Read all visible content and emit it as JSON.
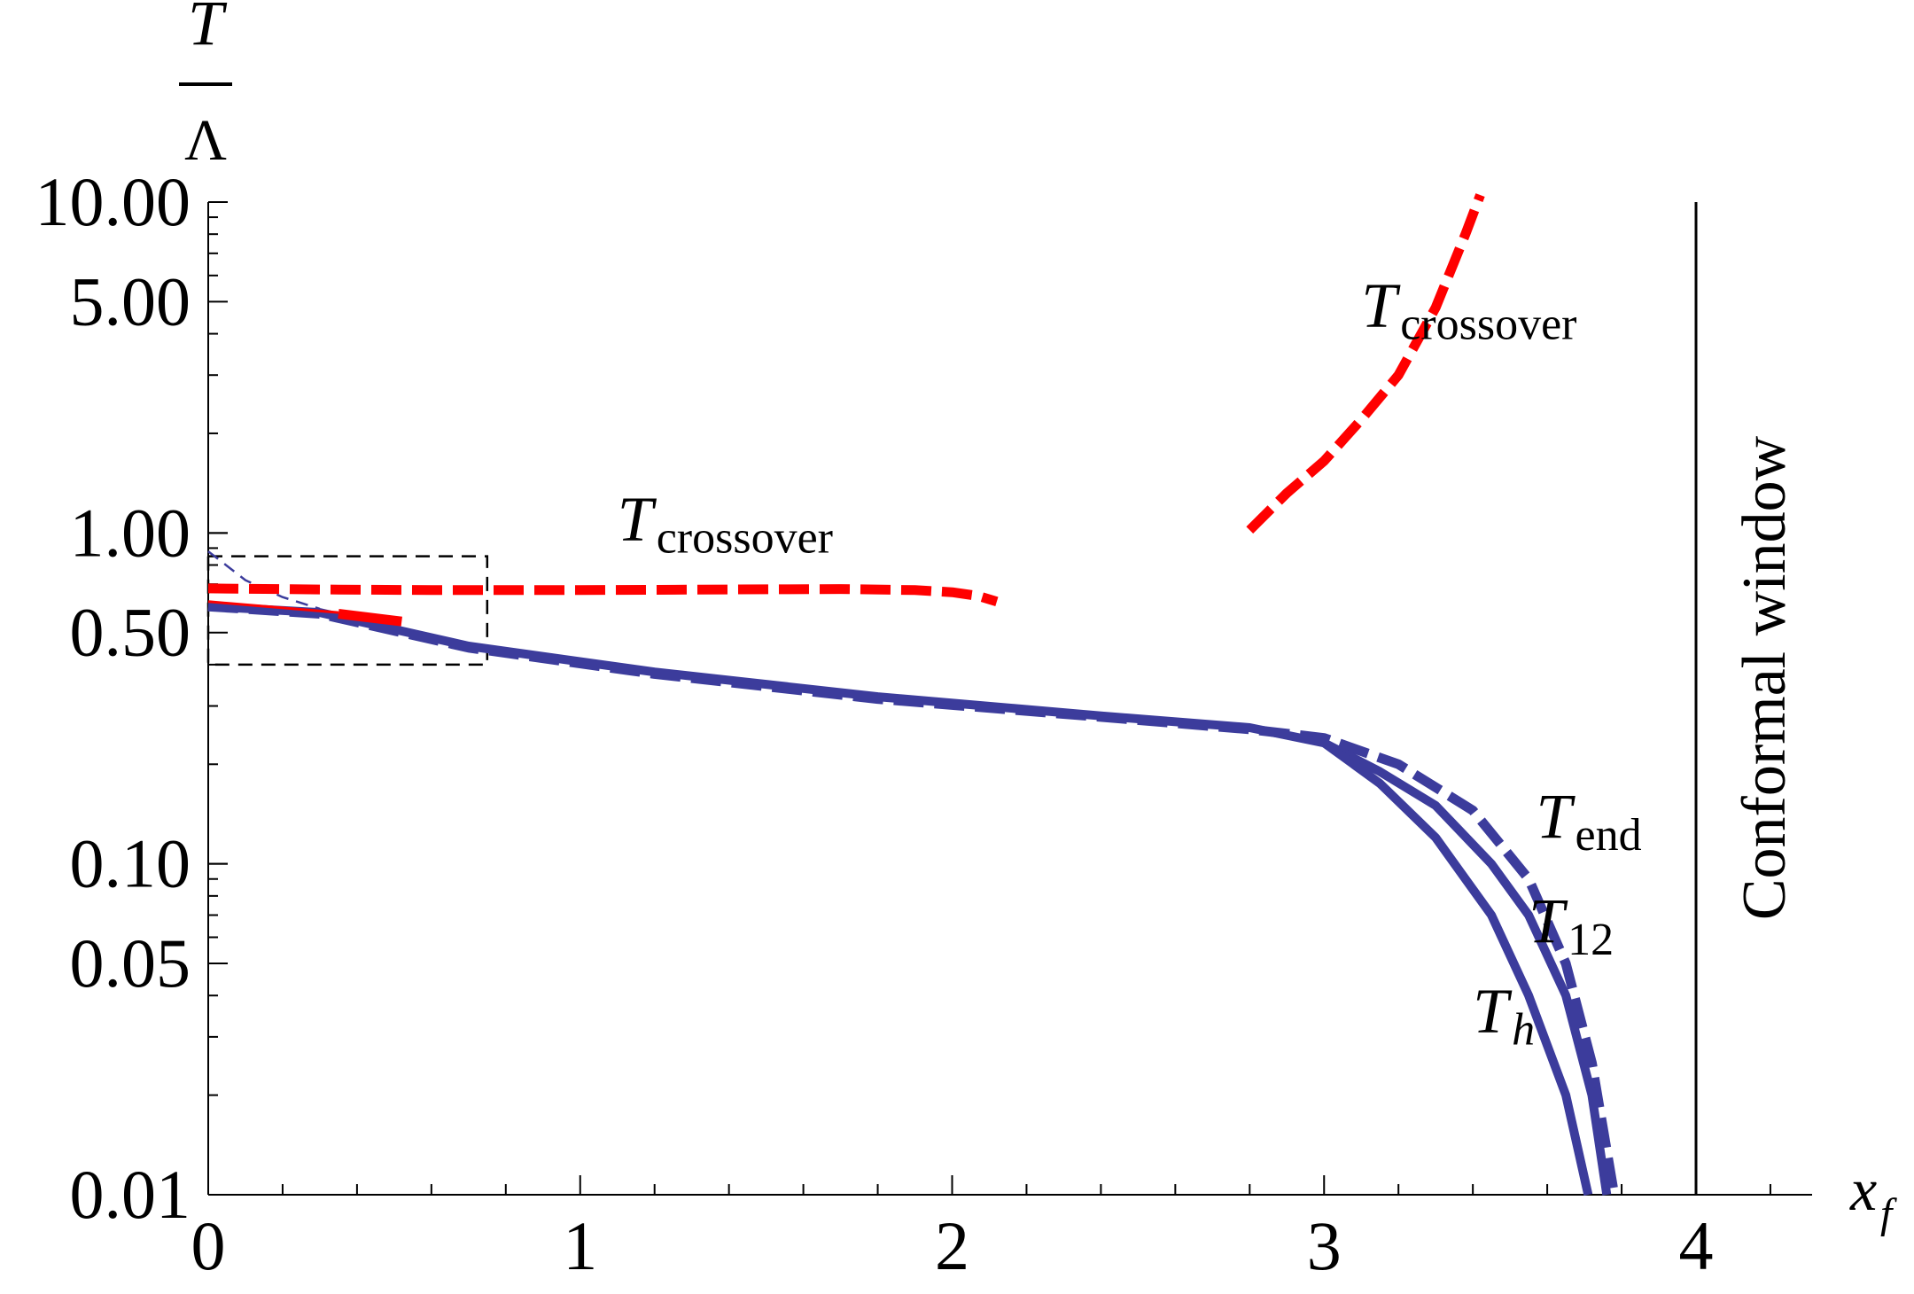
{
  "chart_data": {
    "type": "line",
    "x_axis": {
      "label_main": "x",
      "label_sub": "f",
      "range": [
        0,
        4.3
      ],
      "ticks": [
        {
          "value": 0,
          "label": "0"
        },
        {
          "value": 1,
          "label": "1"
        },
        {
          "value": 2,
          "label": "2"
        },
        {
          "value": 3,
          "label": "3"
        },
        {
          "value": 4,
          "label": "4"
        }
      ]
    },
    "y_axis": {
      "scale": "log",
      "label_numerator": "T",
      "label_denominator": "Λ",
      "range": [
        0.01,
        10
      ],
      "ticks": [
        {
          "value": 10,
          "label": "10.00"
        },
        {
          "value": 5,
          "label": "5.00"
        },
        {
          "value": 1,
          "label": "1.00"
        },
        {
          "value": 0.5,
          "label": "0.50"
        },
        {
          "value": 0.1,
          "label": "0.10"
        },
        {
          "value": 0.05,
          "label": "0.05"
        },
        {
          "value": 0.01,
          "label": "0.01"
        }
      ]
    },
    "grid": false,
    "vertical_line": {
      "x": 4,
      "label": "Conformal window"
    },
    "zoom_box": {
      "x": [
        0,
        0.75
      ],
      "y": [
        0.4,
        0.85
      ]
    },
    "series": [
      {
        "key": "t_crossover_low",
        "color": "#ff0000",
        "style": "dashed",
        "points": [
          [
            0,
            0.68
          ],
          [
            0.3,
            0.675
          ],
          [
            0.6,
            0.672
          ],
          [
            1.0,
            0.672
          ],
          [
            1.4,
            0.675
          ],
          [
            1.7,
            0.677
          ],
          [
            1.9,
            0.672
          ],
          [
            2.0,
            0.662
          ],
          [
            2.07,
            0.645
          ],
          [
            2.12,
            0.62
          ]
        ]
      },
      {
        "key": "t_crossover_high",
        "color": "#ff0000",
        "style": "dashed",
        "points": [
          [
            2.8,
            1.02
          ],
          [
            2.9,
            1.32
          ],
          [
            3.0,
            1.65
          ],
          [
            3.1,
            2.2
          ],
          [
            3.2,
            3.0
          ],
          [
            3.3,
            4.8
          ],
          [
            3.38,
            8.0
          ],
          [
            3.42,
            10.5
          ]
        ]
      },
      {
        "key": "t_end",
        "color": "#3c3c9c",
        "style": "dashed",
        "points": [
          [
            0,
            0.6
          ],
          [
            0.3,
            0.57
          ],
          [
            0.7,
            0.45
          ],
          [
            1.2,
            0.375
          ],
          [
            1.8,
            0.315
          ],
          [
            2.4,
            0.278
          ],
          [
            2.8,
            0.255
          ],
          [
            3.0,
            0.24
          ],
          [
            3.2,
            0.2
          ],
          [
            3.4,
            0.145
          ],
          [
            3.55,
            0.09
          ],
          [
            3.65,
            0.05
          ],
          [
            3.72,
            0.025
          ],
          [
            3.78,
            0.01
          ]
        ]
      },
      {
        "key": "t_12",
        "color": "#3c3c9c",
        "style": "solid",
        "points": [
          [
            3.0,
            0.232
          ],
          [
            3.15,
            0.19
          ],
          [
            3.3,
            0.15
          ],
          [
            3.45,
            0.1
          ],
          [
            3.55,
            0.07
          ],
          [
            3.65,
            0.04
          ],
          [
            3.72,
            0.02
          ],
          [
            3.76,
            0.01
          ]
        ]
      },
      {
        "key": "t_h",
        "color": "#3c3c9c",
        "style": "solid",
        "points": [
          [
            0,
            0.6
          ],
          [
            0.3,
            0.575
          ],
          [
            0.7,
            0.455
          ],
          [
            1.2,
            0.38
          ],
          [
            1.8,
            0.32
          ],
          [
            2.4,
            0.28
          ],
          [
            2.8,
            0.258
          ],
          [
            3.0,
            0.232
          ],
          [
            3.15,
            0.175
          ],
          [
            3.3,
            0.12
          ],
          [
            3.45,
            0.07
          ],
          [
            3.55,
            0.04
          ],
          [
            3.65,
            0.02
          ],
          [
            3.71,
            0.01
          ]
        ]
      },
      {
        "key": "thin_dashed_blue",
        "color": "#3c3c9c",
        "style": "thin-dashed",
        "points": [
          [
            0,
            0.88
          ],
          [
            0.1,
            0.72
          ],
          [
            0.2,
            0.64
          ],
          [
            0.3,
            0.59
          ]
        ]
      },
      {
        "key": "thin_red",
        "color": "#ff0000",
        "style": "thin-solid",
        "points": [
          [
            0,
            0.62
          ],
          [
            0.35,
            0.575
          ]
        ]
      },
      {
        "key": "red_segment",
        "color": "#ff0000",
        "style": "thick-solid",
        "points": [
          [
            0.35,
            0.57
          ],
          [
            0.52,
            0.54
          ]
        ]
      }
    ],
    "annotations": [
      {
        "key": "tc_low",
        "main": "T",
        "sub": "crossover",
        "x": 1.1,
        "y": 0.95
      },
      {
        "key": "tc_high",
        "main": "T",
        "sub": "crossover",
        "x": 3.1,
        "y": 4.2
      },
      {
        "key": "t_end",
        "main": "T",
        "sub": "end",
        "x": 3.57,
        "y": 0.12
      },
      {
        "key": "t_12",
        "main": "T",
        "sub": "12",
        "x": 3.55,
        "y": 0.058
      },
      {
        "key": "t_h",
        "main": "T",
        "sub": "h",
        "x": 3.4,
        "y": 0.031
      }
    ]
  }
}
